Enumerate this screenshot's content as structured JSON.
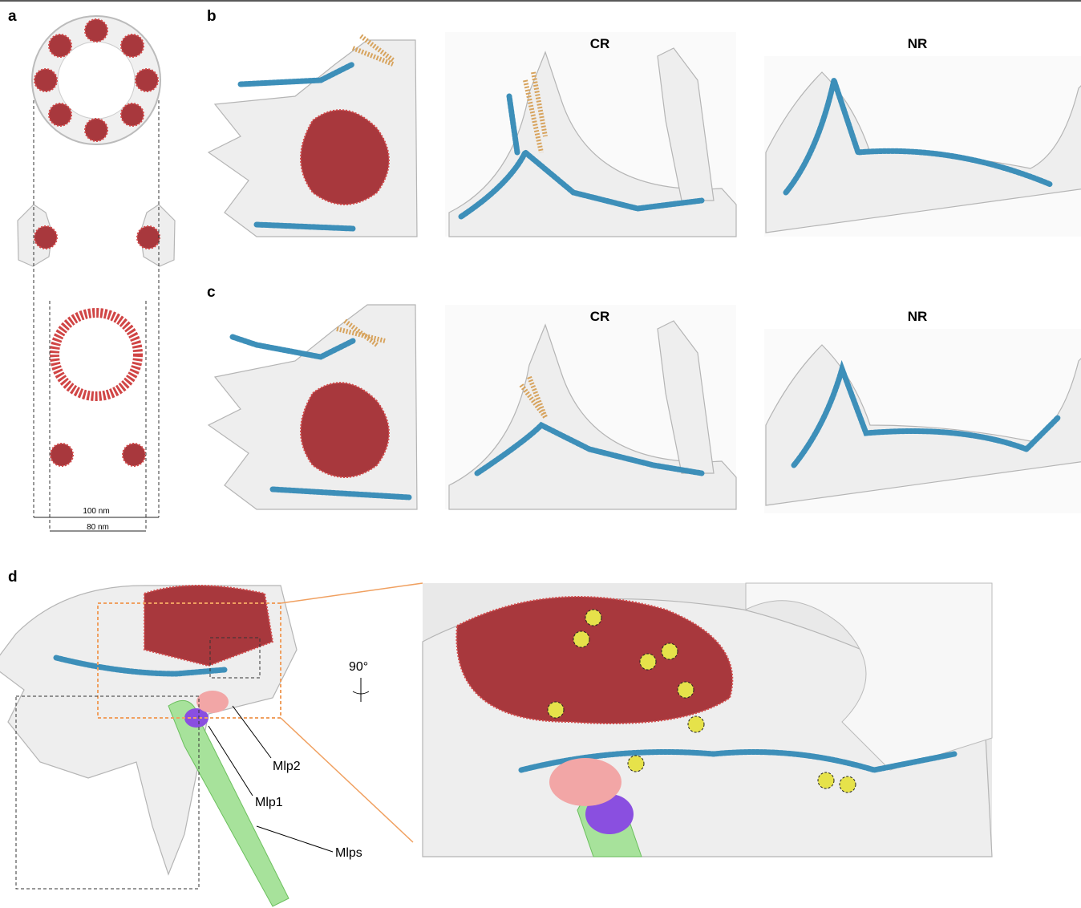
{
  "panels": {
    "a": {
      "label": "a",
      "scale_bars": [
        "100 nm",
        "80 nm"
      ]
    },
    "b": {
      "label": "b",
      "views": [
        "CR",
        "NR"
      ]
    },
    "c": {
      "label": "c",
      "views": [
        "CR",
        "NR"
      ]
    },
    "d": {
      "label": "d",
      "rotation": "90°",
      "callouts": [
        "Mlp2",
        "Mlp1",
        "Mlps"
      ]
    }
  }
}
